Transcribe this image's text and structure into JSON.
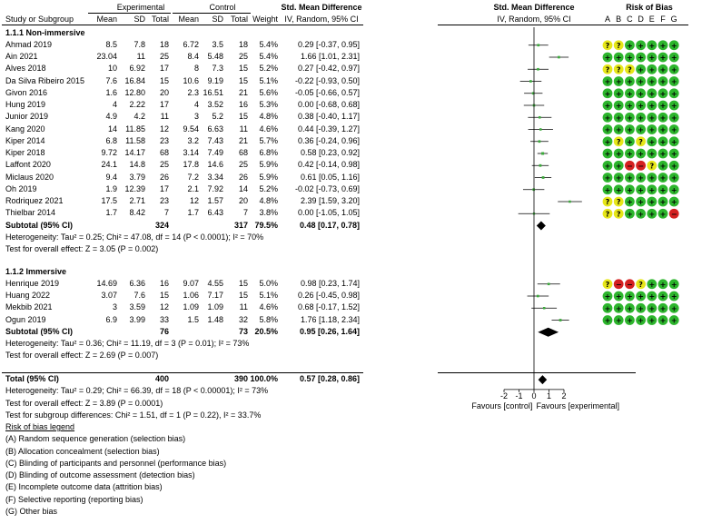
{
  "header": {
    "group1": "Experimental",
    "group2": "Control",
    "col_study": "Study or Subgroup",
    "col_mean": "Mean",
    "col_sd": "SD",
    "col_total": "Total",
    "col_weight": "Weight",
    "effect_title": "Std. Mean Difference",
    "effect_sub": "IV, Random, 95% CI",
    "plot_title": "Std. Mean Difference",
    "plot_sub": "IV, Random, 95% CI",
    "rob_title": "Risk of Bias",
    "rob_letters": [
      "A",
      "B",
      "C",
      "D",
      "E",
      "F",
      "G"
    ]
  },
  "colors": {
    "low": "#2db52d",
    "unclear": "#e6e619",
    "high": "#d42020"
  },
  "chart_data": {
    "type": "forest",
    "axis": {
      "ticks": [
        -2,
        -1,
        0,
        1,
        2
      ],
      "xlim": [
        -4,
        4
      ],
      "label_left": "Favours [control]",
      "label_right": "Favours [experimental]"
    },
    "subgroups": [
      {
        "title": "1.1.1 Non-immersive",
        "studies": [
          {
            "name": "Ahmad 2019",
            "m1": "8.5",
            "sd1": "7.8",
            "n1": "18",
            "m2": "6.72",
            "sd2": "3.5",
            "n2": "18",
            "weight": "5.4%",
            "ci": "0.29 [-0.37, 0.95]",
            "est": 0.29,
            "lo": -0.37,
            "hi": 0.95,
            "w": 5.4,
            "rob": [
              "u",
              "u",
              "l",
              "l",
              "l",
              "l",
              "l"
            ]
          },
          {
            "name": "Ain 2021",
            "m1": "23.04",
            "sd1": "11",
            "n1": "25",
            "m2": "8.4",
            "sd2": "5.48",
            "n2": "25",
            "weight": "5.4%",
            "ci": "1.66 [1.01, 2.31]",
            "est": 1.66,
            "lo": 1.01,
            "hi": 2.31,
            "w": 5.4,
            "rob": [
              "l",
              "l",
              "l",
              "l",
              "l",
              "l",
              "l"
            ]
          },
          {
            "name": "Alves 2018",
            "m1": "10",
            "sd1": "6.92",
            "n1": "17",
            "m2": "8",
            "sd2": "7.3",
            "n2": "15",
            "weight": "5.2%",
            "ci": "0.27 [-0.42, 0.97]",
            "est": 0.27,
            "lo": -0.42,
            "hi": 0.97,
            "w": 5.2,
            "rob": [
              "u",
              "u",
              "u",
              "l",
              "l",
              "l",
              "l"
            ]
          },
          {
            "name": "Da Silva Ribeiro 2015",
            "m1": "7.6",
            "sd1": "16.84",
            "n1": "15",
            "m2": "10.6",
            "sd2": "9.19",
            "n2": "15",
            "weight": "5.1%",
            "ci": "-0.22 [-0.93, 0.50]",
            "est": -0.22,
            "lo": -0.93,
            "hi": 0.5,
            "w": 5.1,
            "rob": [
              "l",
              "l",
              "l",
              "l",
              "l",
              "l",
              "l"
            ]
          },
          {
            "name": "Givon 2016",
            "m1": "1.6",
            "sd1": "12.80",
            "n1": "20",
            "m2": "2.3",
            "sd2": "16.51",
            "n2": "21",
            "weight": "5.6%",
            "ci": "-0.05 [-0.66, 0.57]",
            "est": -0.05,
            "lo": -0.66,
            "hi": 0.57,
            "w": 5.6,
            "rob": [
              "l",
              "l",
              "l",
              "l",
              "l",
              "l",
              "l"
            ]
          },
          {
            "name": "Hung 2019",
            "m1": "4",
            "sd1": "2.22",
            "n1": "17",
            "m2": "4",
            "sd2": "3.52",
            "n2": "16",
            "weight": "5.3%",
            "ci": "0.00 [-0.68, 0.68]",
            "est": 0.0,
            "lo": -0.68,
            "hi": 0.68,
            "w": 5.3,
            "rob": [
              "l",
              "l",
              "l",
              "l",
              "l",
              "l",
              "l"
            ]
          },
          {
            "name": "Junior 2019",
            "m1": "4.9",
            "sd1": "4.2",
            "n1": "11",
            "m2": "3",
            "sd2": "5.2",
            "n2": "15",
            "weight": "4.8%",
            "ci": "0.38 [-0.40, 1.17]",
            "est": 0.38,
            "lo": -0.4,
            "hi": 1.17,
            "w": 4.8,
            "rob": [
              "l",
              "l",
              "l",
              "l",
              "l",
              "l",
              "l"
            ]
          },
          {
            "name": "Kang 2020",
            "m1": "14",
            "sd1": "11.85",
            "n1": "12",
            "m2": "9.54",
            "sd2": "6.63",
            "n2": "11",
            "weight": "4.6%",
            "ci": "0.44 [-0.39, 1.27]",
            "est": 0.44,
            "lo": -0.39,
            "hi": 1.27,
            "w": 4.6,
            "rob": [
              "l",
              "l",
              "l",
              "l",
              "l",
              "l",
              "l"
            ]
          },
          {
            "name": "Kiper 2014",
            "m1": "6.8",
            "sd1": "11.58",
            "n1": "23",
            "m2": "3.2",
            "sd2": "7.43",
            "n2": "21",
            "weight": "5.7%",
            "ci": "0.36 [-0.24, 0.96]",
            "est": 0.36,
            "lo": -0.24,
            "hi": 0.96,
            "w": 5.7,
            "rob": [
              "l",
              "u",
              "l",
              "u",
              "l",
              "l",
              "l"
            ]
          },
          {
            "name": "Kiper 2018",
            "m1": "9.72",
            "sd1": "14.17",
            "n1": "68",
            "m2": "3.14",
            "sd2": "7.49",
            "n2": "68",
            "weight": "6.8%",
            "ci": "0.58 [0.23, 0.92]",
            "est": 0.58,
            "lo": 0.23,
            "hi": 0.92,
            "w": 6.8,
            "rob": [
              "l",
              "l",
              "l",
              "l",
              "l",
              "l",
              "l"
            ]
          },
          {
            "name": "Laffont 2020",
            "m1": "24.1",
            "sd1": "14.8",
            "n1": "25",
            "m2": "17.8",
            "sd2": "14.6",
            "n2": "25",
            "weight": "5.9%",
            "ci": "0.42 [-0.14, 0.98]",
            "est": 0.42,
            "lo": -0.14,
            "hi": 0.98,
            "w": 5.9,
            "rob": [
              "l",
              "l",
              "h",
              "h",
              "u",
              "l",
              "l"
            ]
          },
          {
            "name": "Miclaus 2020",
            "m1": "9.4",
            "sd1": "3.79",
            "n1": "26",
            "m2": "7.2",
            "sd2": "3.34",
            "n2": "26",
            "weight": "5.9%",
            "ci": "0.61 [0.05, 1.16]",
            "est": 0.61,
            "lo": 0.05,
            "hi": 1.16,
            "w": 5.9,
            "rob": [
              "l",
              "l",
              "l",
              "l",
              "l",
              "l",
              "l"
            ]
          },
          {
            "name": "Oh 2019",
            "m1": "1.9",
            "sd1": "12.39",
            "n1": "17",
            "m2": "2.1",
            "sd2": "7.92",
            "n2": "14",
            "weight": "5.2%",
            "ci": "-0.02 [-0.73, 0.69]",
            "est": -0.02,
            "lo": -0.73,
            "hi": 0.69,
            "w": 5.2,
            "rob": [
              "l",
              "l",
              "l",
              "l",
              "l",
              "l",
              "l"
            ]
          },
          {
            "name": "Rodriquez 2021",
            "m1": "17.5",
            "sd1": "2.71",
            "n1": "23",
            "m2": "12",
            "sd2": "1.57",
            "n2": "20",
            "weight": "4.8%",
            "ci": "2.39 [1.59, 3.20]",
            "est": 2.39,
            "lo": 1.59,
            "hi": 3.2,
            "w": 4.8,
            "rob": [
              "u",
              "u",
              "l",
              "l",
              "l",
              "l",
              "l"
            ]
          },
          {
            "name": "Thielbar 2014",
            "m1": "1.7",
            "sd1": "8.42",
            "n1": "7",
            "m2": "1.7",
            "sd2": "6.43",
            "n2": "7",
            "weight": "3.8%",
            "ci": "0.00 [-1.05, 1.05]",
            "est": 0.0,
            "lo": -1.05,
            "hi": 1.05,
            "w": 3.8,
            "rob": [
              "u",
              "u",
              "l",
              "l",
              "l",
              "l",
              "h"
            ]
          }
        ],
        "subtotal": {
          "label": "Subtotal (95% CI)",
          "n1": "324",
          "n2": "317",
          "weight": "79.5%",
          "ci": "0.48 [0.17, 0.78]",
          "est": 0.48,
          "lo": 0.17,
          "hi": 0.78
        },
        "heterogeneity": "Heterogeneity: Tau² = 0.25; Chi² = 47.08, df = 14 (P < 0.0001); I² = 70%",
        "overall": "Test for overall effect: Z = 3.05 (P = 0.002)"
      },
      {
        "title": "1.1.2 Immersive",
        "studies": [
          {
            "name": "Henrique 2019",
            "m1": "14.69",
            "sd1": "6.36",
            "n1": "16",
            "m2": "9.07",
            "sd2": "4.55",
            "n2": "15",
            "weight": "5.0%",
            "ci": "0.98 [0.23, 1.74]",
            "est": 0.98,
            "lo": 0.23,
            "hi": 1.74,
            "w": 5.0,
            "rob": [
              "u",
              "h",
              "h",
              "u",
              "l",
              "l",
              "l"
            ]
          },
          {
            "name": "Huang 2022",
            "m1": "3.07",
            "sd1": "7.6",
            "n1": "15",
            "m2": "1.06",
            "sd2": "7.17",
            "n2": "15",
            "weight": "5.1%",
            "ci": "0.26 [-0.45, 0.98]",
            "est": 0.26,
            "lo": -0.45,
            "hi": 0.98,
            "w": 5.1,
            "rob": [
              "l",
              "l",
              "l",
              "l",
              "l",
              "l",
              "l"
            ]
          },
          {
            "name": "Mekbib 2021",
            "m1": "3",
            "sd1": "3.59",
            "n1": "12",
            "m2": "1.09",
            "sd2": "1.09",
            "n2": "11",
            "weight": "4.6%",
            "ci": "0.68 [-0.17, 1.52]",
            "est": 0.68,
            "lo": -0.17,
            "hi": 1.52,
            "w": 4.6,
            "rob": [
              "l",
              "l",
              "l",
              "l",
              "l",
              "l",
              "l"
            ]
          },
          {
            "name": "Ogun 2019",
            "m1": "6.9",
            "sd1": "3.99",
            "n1": "33",
            "m2": "1.5",
            "sd2": "1.48",
            "n2": "32",
            "weight": "5.8%",
            "ci": "1.76 [1.18, 2.34]",
            "est": 1.76,
            "lo": 1.18,
            "hi": 2.34,
            "w": 5.8,
            "rob": [
              "l",
              "l",
              "l",
              "l",
              "l",
              "l",
              "l"
            ]
          }
        ],
        "subtotal": {
          "label": "Subtotal (95% CI)",
          "n1": "76",
          "n2": "73",
          "weight": "20.5%",
          "ci": "0.95 [0.26, 1.64]",
          "est": 0.95,
          "lo": 0.26,
          "hi": 1.64
        },
        "heterogeneity": "Heterogeneity: Tau² = 0.36; Chi² = 11.19, df = 3 (P = 0.01); I² = 73%",
        "overall": "Test for overall effect: Z = 2.69 (P = 0.007)"
      }
    ],
    "total": {
      "label": "Total (95% CI)",
      "n1": "400",
      "n2": "390",
      "weight": "100.0%",
      "ci": "0.57 [0.28, 0.86]",
      "est": 0.57,
      "lo": 0.28,
      "hi": 0.86
    },
    "total_heterogeneity": "Heterogeneity: Tau² = 0.29; Chi² = 66.39, df = 18 (P < 0.00001); I² = 73%",
    "total_overall": "Test for overall effect: Z = 3.89 (P = 0.0001)",
    "subgroup_diff": "Test for subgroup differences: Chi² = 1.51, df = 1 (P = 0.22), I² = 33.7%"
  },
  "legend": {
    "title": "Risk of bias legend",
    "items": [
      "(A) Random sequence generation (selection bias)",
      "(B) Allocation concealment (selection bias)",
      "(C) Blinding of participants and personnel (performance bias)",
      "(D) Blinding of outcome assessment (detection bias)",
      "(E) Incomplete outcome data (attrition bias)",
      "(F) Selective reporting (reporting bias)",
      "(G) Other bias"
    ]
  }
}
